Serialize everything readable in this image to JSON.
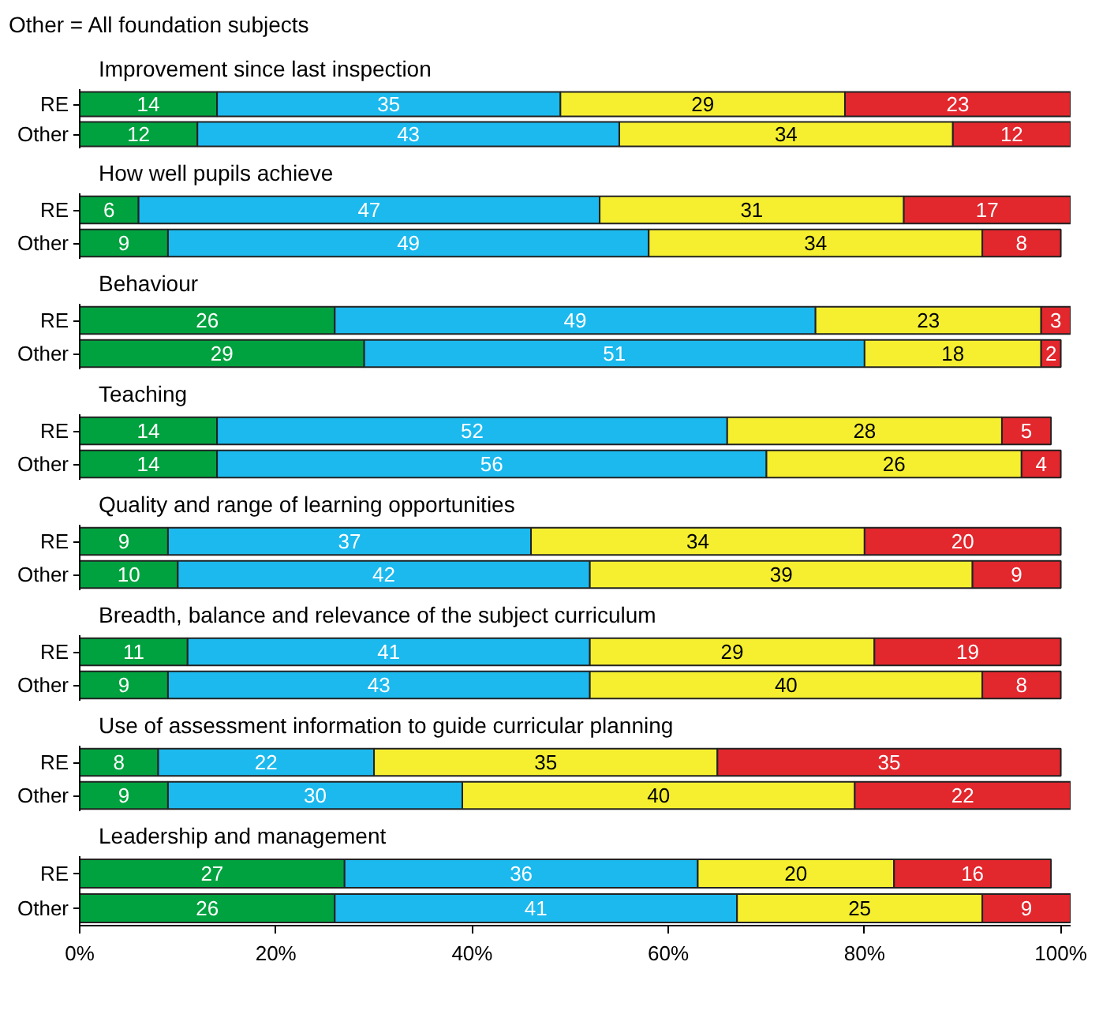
{
  "chart_data": [
    {
      "type": "bar",
      "orientation": "horizontal",
      "stacked": true,
      "data_labels": true,
      "tick_labels": "y",
      "annotations": [
        "Other = All foundation subjects"
      ],
      "title": "Improvement since last inspection",
      "categories": [
        "RE",
        "Other"
      ],
      "series": [
        {
          "color": "#00a23f",
          "values": [
            14,
            12
          ]
        },
        {
          "color": "#1bb9ee",
          "values": [
            35,
            43
          ]
        },
        {
          "color": "#f5ef30",
          "values": [
            29,
            34
          ]
        },
        {
          "color": "#e2272d",
          "values": [
            23,
            12
          ]
        }
      ]
    },
    {
      "type": "bar",
      "orientation": "horizontal",
      "stacked": true,
      "data_labels": true,
      "tick_labels": "y",
      "title": "How well pupils achieve",
      "categories": [
        "RE",
        "Other"
      ],
      "series": [
        {
          "color": "#00a23f",
          "values": [
            6,
            9
          ]
        },
        {
          "color": "#1bb9ee",
          "values": [
            47,
            49
          ]
        },
        {
          "color": "#f5ef30",
          "values": [
            31,
            34
          ]
        },
        {
          "color": "#e2272d",
          "values": [
            17,
            8
          ]
        }
      ]
    },
    {
      "type": "bar",
      "orientation": "horizontal",
      "stacked": true,
      "data_labels": true,
      "tick_labels": "y",
      "title": "Behaviour",
      "categories": [
        "RE",
        "Other"
      ],
      "series": [
        {
          "color": "#00a23f",
          "values": [
            26,
            29
          ]
        },
        {
          "color": "#1bb9ee",
          "values": [
            49,
            51
          ]
        },
        {
          "color": "#f5ef30",
          "values": [
            23,
            18
          ]
        },
        {
          "color": "#e2272d",
          "values": [
            3,
            2
          ]
        }
      ]
    },
    {
      "type": "bar",
      "orientation": "horizontal",
      "stacked": true,
      "data_labels": true,
      "tick_labels": "y",
      "title": "Teaching",
      "categories": [
        "RE",
        "Other"
      ],
      "series": [
        {
          "color": "#00a23f",
          "values": [
            14,
            14
          ]
        },
        {
          "color": "#1bb9ee",
          "values": [
            52,
            56
          ]
        },
        {
          "color": "#f5ef30",
          "values": [
            28,
            26
          ]
        },
        {
          "color": "#e2272d",
          "values": [
            5,
            4
          ]
        }
      ]
    },
    {
      "type": "bar",
      "orientation": "horizontal",
      "stacked": true,
      "data_labels": true,
      "tick_labels": "y",
      "title": "Quality and range of learning opportunities",
      "categories": [
        "RE",
        "Other"
      ],
      "series": [
        {
          "color": "#00a23f",
          "values": [
            9,
            10
          ]
        },
        {
          "color": "#1bb9ee",
          "values": [
            37,
            42
          ]
        },
        {
          "color": "#f5ef30",
          "values": [
            34,
            39
          ]
        },
        {
          "color": "#e2272d",
          "values": [
            20,
            9
          ]
        }
      ]
    },
    {
      "type": "bar",
      "orientation": "horizontal",
      "stacked": true,
      "data_labels": true,
      "tick_labels": "y",
      "title": "Breadth, balance and relevance of the subject curriculum",
      "categories": [
        "RE",
        "Other"
      ],
      "series": [
        {
          "color": "#00a23f",
          "values": [
            11,
            9
          ]
        },
        {
          "color": "#1bb9ee",
          "values": [
            41,
            43
          ]
        },
        {
          "color": "#f5ef30",
          "values": [
            29,
            40
          ]
        },
        {
          "color": "#e2272d",
          "values": [
            19,
            8
          ]
        }
      ]
    },
    {
      "type": "bar",
      "orientation": "horizontal",
      "stacked": true,
      "data_labels": true,
      "tick_labels": "y",
      "title": "Use of assessment information to guide curricular planning",
      "categories": [
        "RE",
        "Other"
      ],
      "series": [
        {
          "color": "#00a23f",
          "values": [
            8,
            9
          ]
        },
        {
          "color": "#1bb9ee",
          "values": [
            22,
            30
          ]
        },
        {
          "color": "#f5ef30",
          "values": [
            35,
            40
          ]
        },
        {
          "color": "#e2272d",
          "values": [
            35,
            22
          ]
        }
      ]
    },
    {
      "type": "bar",
      "orientation": "horizontal",
      "stacked": true,
      "data_labels": true,
      "title": "Leadership and management",
      "categories": [
        "RE",
        "Other"
      ],
      "xlim": [
        0,
        101
      ],
      "xticks": [
        {
          "value": 0,
          "label": "0%"
        },
        {
          "value": 20,
          "label": "20%"
        },
        {
          "value": 40,
          "label": "40%"
        },
        {
          "value": 60,
          "label": "60%"
        },
        {
          "value": 80,
          "label": "80%"
        },
        {
          "value": 100,
          "label": "100%"
        }
      ],
      "series": [
        {
          "color": "#00a23f",
          "values": [
            27,
            26
          ]
        },
        {
          "color": "#1bb9ee",
          "values": [
            36,
            41
          ]
        },
        {
          "color": "#f5ef30",
          "values": [
            20,
            25
          ]
        },
        {
          "color": "#e2272d",
          "values": [
            16,
            9
          ]
        }
      ]
    }
  ]
}
